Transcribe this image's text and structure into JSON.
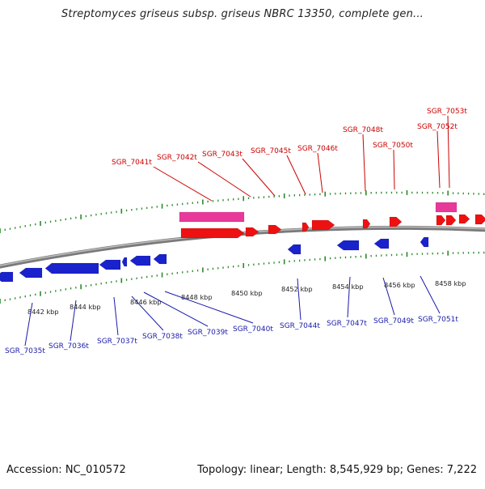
{
  "title": "Streptomyces griseus subsp. griseus NBRC 13350, complete gen...",
  "footer": {
    "accession": "Accession: NC_010572",
    "summary": "Topology: linear; Length: 8,545,929 bp; Genes: 7,222"
  },
  "colors": {
    "forward_gene": "#ee1111",
    "forward_rna": "#e8399a",
    "reverse_gene": "#1a22cc",
    "forward_label": "#cc0000",
    "reverse_label": "#1a1aaa",
    "tick": "#2a8a2a",
    "axis": "#888888"
  },
  "scale_labels": [
    "8442 kbp",
    "8444 kbp",
    "8446 kbp",
    "8448 kbp",
    "8450 kbp",
    "8452 kbp",
    "8454 kbp",
    "8456 kbp",
    "8458 kbp"
  ],
  "forward_labels": [
    "SGR_7041t",
    "SGR_7042t",
    "SGR_7043t",
    "SGR_7045t",
    "SGR_7046t",
    "SGR_7048t",
    "SGR_7050t",
    "SGR_7052t",
    "SGR_7053t"
  ],
  "reverse_labels": [
    "SGR_7035t",
    "SGR_7036t",
    "SGR_7037t",
    "SGR_7038t",
    "SGR_7039t",
    "SGR_7040t",
    "SGR_7044t",
    "SGR_7047t",
    "SGR_7049t",
    "SGR_7051t"
  ]
}
